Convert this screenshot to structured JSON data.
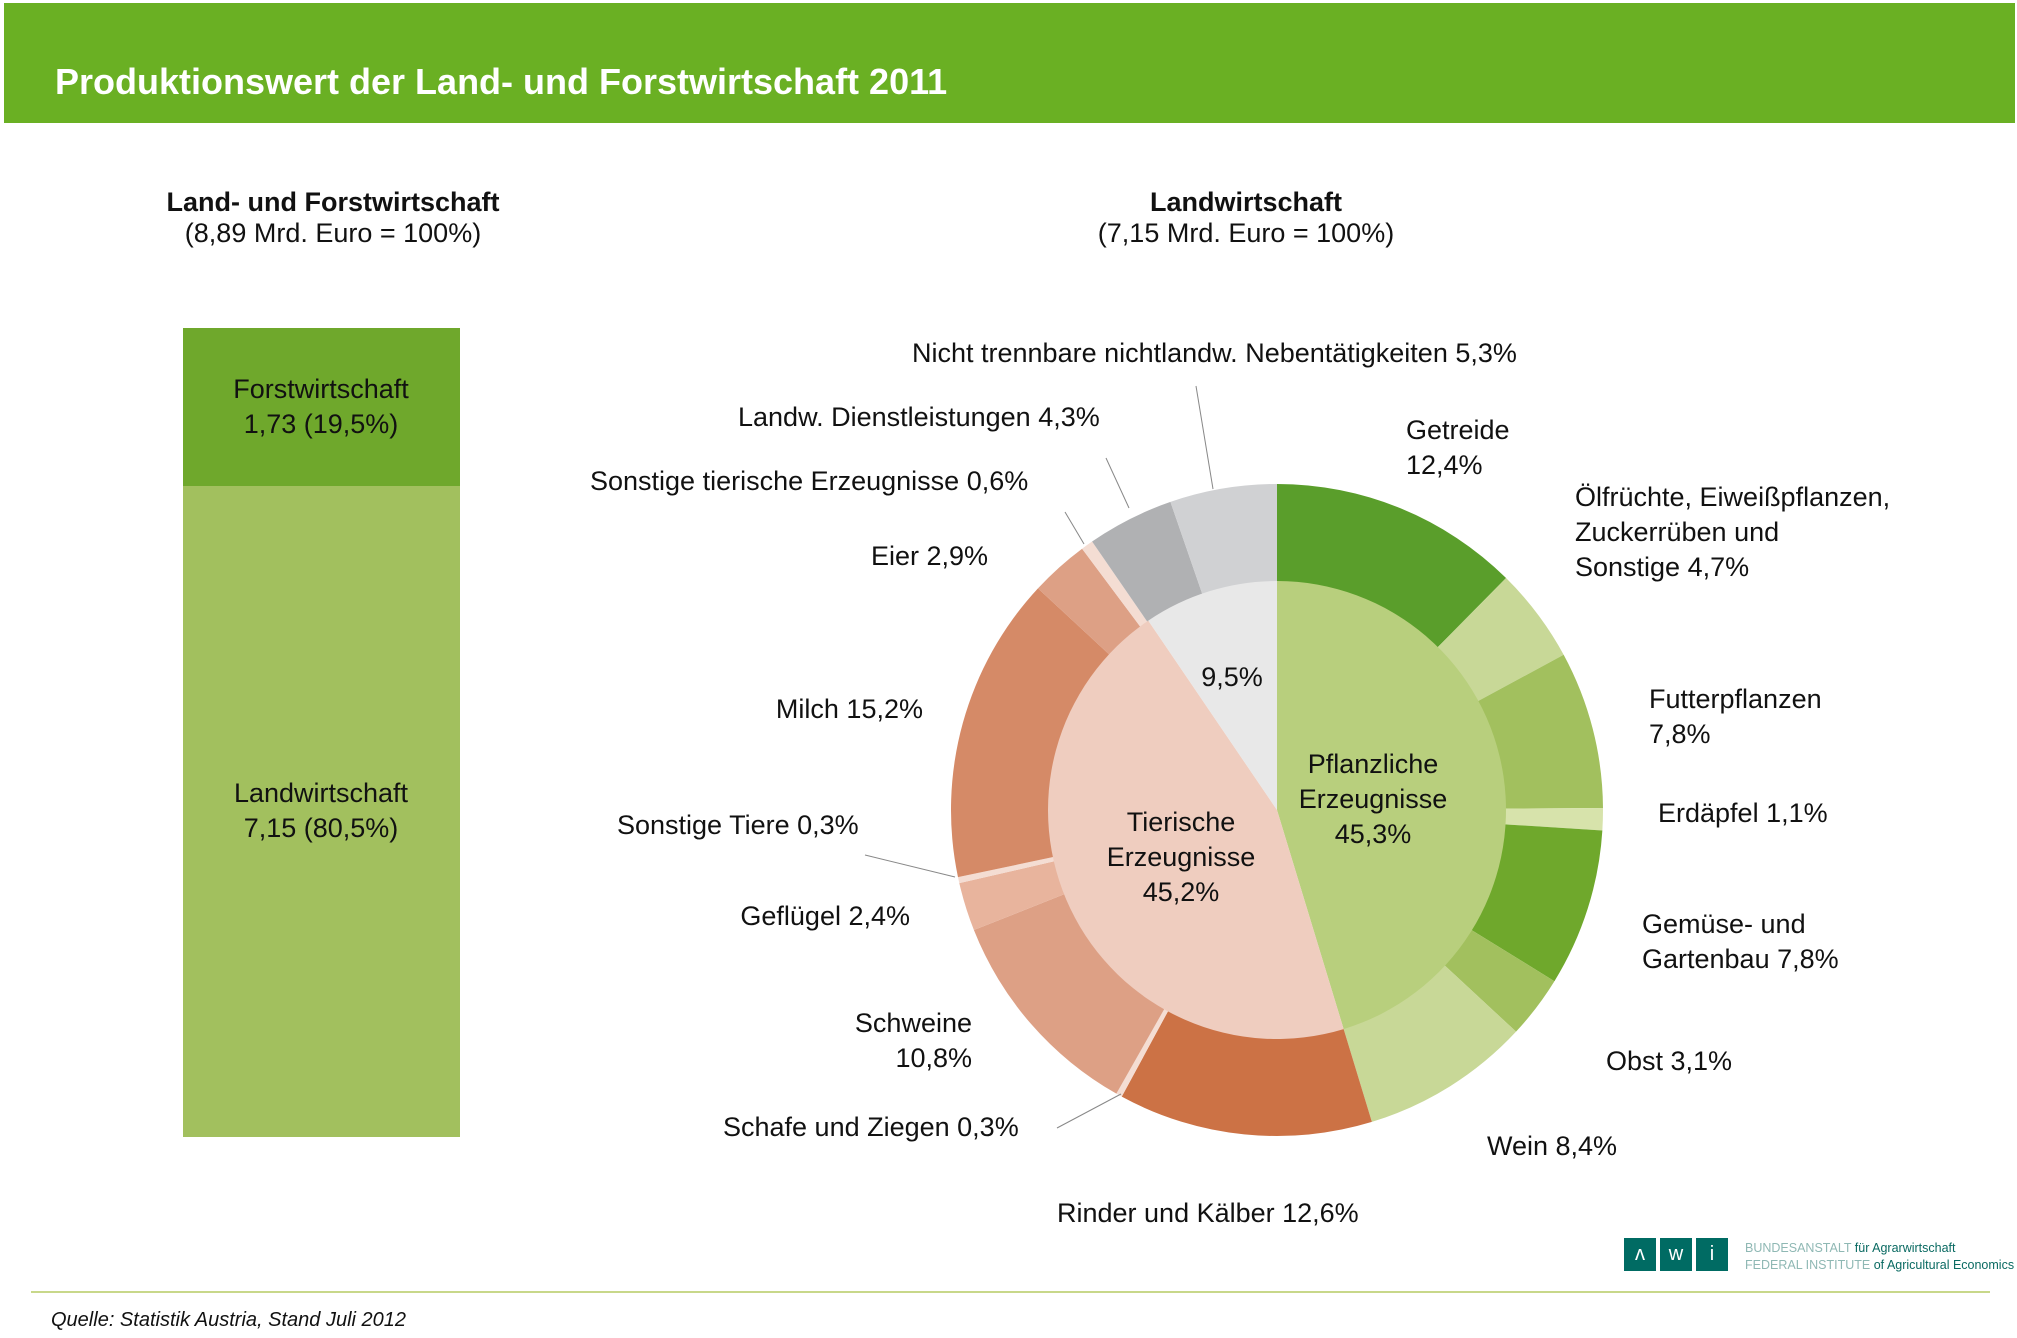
{
  "header": {
    "title": "Produktionswert der Land- und Forstwirtschaft 2011"
  },
  "left": {
    "title": "Land- und Forstwirtschaft",
    "subtitle": "(8,89 Mrd. Euro = 100%)"
  },
  "right": {
    "title": "Landwirtschaft",
    "subtitle": "(7,15 Mrd. Euro = 100%)"
  },
  "source": "Quelle: Statistik Austria, Stand Juli 2012",
  "logo": {
    "letters": [
      "ʌ",
      "w",
      "i"
    ],
    "line1a": "BUNDESANSTALT",
    "line1b": "für Agrarwirtschaft",
    "line2a": "FEDERAL INSTITUTE",
    "line2b": "of Agricultural Economics"
  },
  "chart_data": [
    {
      "type": "bar",
      "stacked": true,
      "title": "Land- und Forstwirtschaft",
      "subtitle": "(8,89 Mrd. Euro = 100%)",
      "series": [
        {
          "name": "Landwirtschaft",
          "value": 7.15,
          "percent": 80.5,
          "label1": "Landwirtschaft",
          "label2": "7,15 (80,5%)",
          "color": "#a2c05e"
        },
        {
          "name": "Forstwirtschaft",
          "value": 1.73,
          "percent": 19.5,
          "label1": "Forstwirtschaft",
          "label2": "1,73 (19,5%)",
          "color": "#6fa82c"
        }
      ]
    },
    {
      "type": "pie",
      "subtype": "donut-two-level",
      "title": "Landwirtschaft",
      "subtitle": "(7,15 Mrd. Euro = 100%)",
      "inner": [
        {
          "name": "Pflanzliche Erzeugnisse",
          "value": 45.3,
          "lines": [
            "Pflanzliche",
            "Erzeugnisse",
            "45,3%"
          ],
          "color": "#b8cf7d"
        },
        {
          "name": "Tierische Erzeugnisse",
          "value": 45.2,
          "lines": [
            "Tierische",
            "Erzeugnisse",
            "45,2%"
          ],
          "color": "#efcdbf"
        },
        {
          "name": "",
          "value": 9.5,
          "lines": [
            "9,5%"
          ],
          "color": "#e8e8e8"
        }
      ],
      "outer": [
        {
          "value": 12.4,
          "lines": [
            "Getreide",
            "12,4%"
          ],
          "color": "#5a9e2b"
        },
        {
          "value": 4.7,
          "lines": [
            "Ölfrüchte, Eiweißpflanzen,",
            "Zuckerrüben und",
            "Sonstige  4,7%"
          ],
          "color": "#c8d897"
        },
        {
          "value": 7.8,
          "lines": [
            "Futterpflanzen",
            "7,8%"
          ],
          "color": "#a2c05e"
        },
        {
          "value": 1.1,
          "lines": [
            "Erdäpfel 1,1%"
          ],
          "color": "#d7e3ab"
        },
        {
          "value": 7.8,
          "lines": [
            "Gemüse- und",
            "Gartenbau  7,8%"
          ],
          "color": "#6fa82c"
        },
        {
          "value": 3.1,
          "lines": [
            "Obst 3,1%"
          ],
          "color": "#a2c05e"
        },
        {
          "value": 8.4,
          "lines": [
            "Wein 8,4%"
          ],
          "color": "#c8d897"
        },
        {
          "value": 12.6,
          "lines": [
            "Rinder und Kälber  12,6%"
          ],
          "color": "#cc7245"
        },
        {
          "value": 0.3,
          "lines": [
            "Schafe und Ziegen  0,3%"
          ],
          "color": "#f4ddd3"
        },
        {
          "value": 10.8,
          "lines": [
            "Schweine",
            "10,8%"
          ],
          "color": "#dda085"
        },
        {
          "value": 2.4,
          "lines": [
            "Geflügel  2,4%"
          ],
          "color": "#e8b49d"
        },
        {
          "value": 0.3,
          "lines": [
            "Sonstige Tiere 0,3%"
          ],
          "color": "#f4ddd3"
        },
        {
          "value": 15.2,
          "lines": [
            "Milch  15,2%"
          ],
          "color": "#d58a67"
        },
        {
          "value": 2.9,
          "lines": [
            "Eier  2,9%"
          ],
          "color": "#dda085"
        },
        {
          "value": 0.6,
          "lines": [
            "Sonstige tierische Erzeugnisse  0,6%"
          ],
          "color": "#f4ddd3"
        },
        {
          "value": 4.3,
          "lines": [
            "Landw. Dienstleistungen 4,3%"
          ],
          "color": "#b0b1b3"
        },
        {
          "value": 5.3,
          "lines": [
            "Nicht trennbare nichtlandw. Nebentätigkeiten 5,3%"
          ],
          "color": "#d0d1d3"
        }
      ]
    }
  ]
}
